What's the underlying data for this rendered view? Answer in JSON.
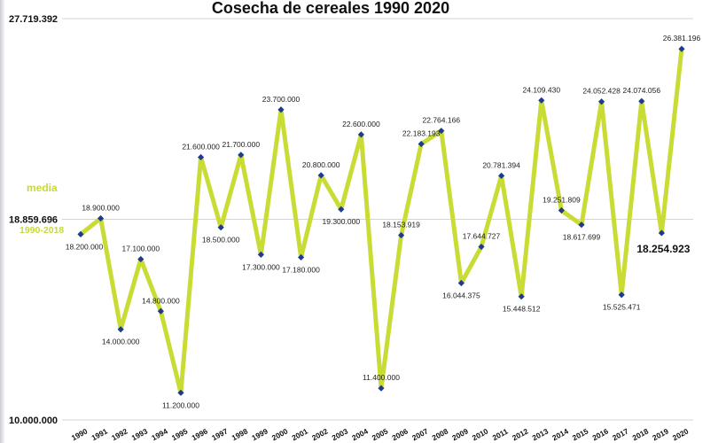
{
  "chart_data": {
    "type": "line",
    "title": "Cosecha de cereales 1990 2020",
    "x": [
      "1990",
      "1991",
      "1992",
      "1993",
      "1994",
      "1995",
      "1996",
      "1997",
      "1998",
      "1999",
      "2000",
      "2001",
      "2002",
      "2003",
      "2004",
      "2005",
      "2006",
      "2007",
      "2008",
      "2009",
      "2010",
      "2011",
      "2012",
      "2013",
      "2014",
      "2015",
      "2016",
      "2017",
      "2018",
      "2019",
      "2020"
    ],
    "values": [
      18200000,
      18900000,
      14000000,
      17100000,
      14800000,
      11200000,
      21600000,
      18500000,
      21700000,
      17300000,
      23700000,
      17180000,
      20800000,
      19300000,
      22600000,
      11400000,
      18153919,
      22183193,
      22764166,
      16044375,
      17644727,
      20781394,
      15448512,
      24109430,
      19251809,
      18617699,
      24052428,
      15525471,
      24074056,
      18254923,
      26381196
    ],
    "data_labels": [
      "18.200.000",
      "18.900.000",
      "14.000.000",
      "17.100.000",
      "14.800.000",
      "11.200.000",
      "21.600.000",
      "18.500.000",
      "21.700.000",
      "17.300.000",
      "23.700.000",
      "17.180.000",
      "20.800.000",
      "19.300.000",
      "22.600.000",
      "11.400.000",
      "18.153.919",
      "22.183.193",
      "22.764.166",
      "16.044.375",
      "17.644.727",
      "20.781.394",
      "15.448.512",
      "24.109.430",
      "19.251.809",
      "18.617.699",
      "24.052.428",
      "15.525.471",
      "24.074.056",
      "18.254.923",
      "26.381.196"
    ],
    "ylim": [
      10000000,
      27719392
    ],
    "y_ticks": [
      {
        "value": 27719392,
        "label": "27.719.392"
      },
      {
        "value": 18859696,
        "label": "18.859.696"
      },
      {
        "value": 10000000,
        "label": "10.000.000"
      }
    ],
    "reference_line": {
      "value": 18859696,
      "label": "media",
      "sublabel": "1990-2018"
    },
    "highlight_label_index": 29,
    "grid": true,
    "legend": "none",
    "colors": {
      "line": "#c9dc35",
      "marker": "#1f3b8c",
      "grid": "#d4d4d4",
      "media": "#c7d93a"
    }
  }
}
